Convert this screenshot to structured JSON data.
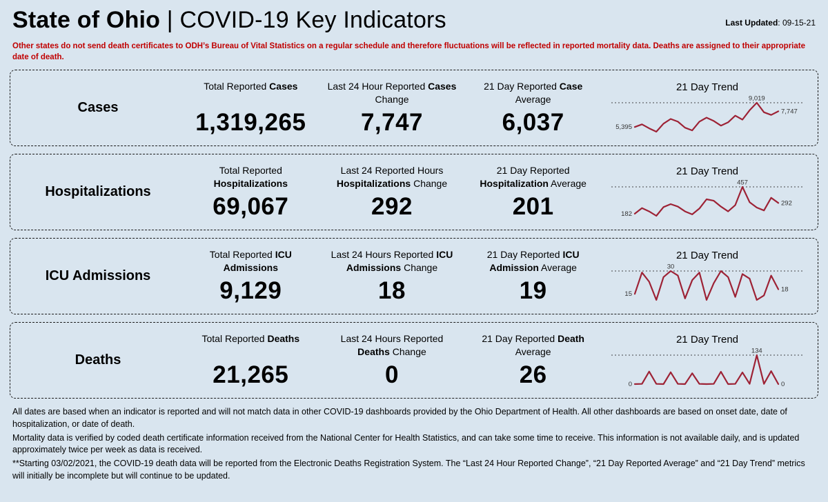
{
  "header": {
    "title_primary": "State of Ohio",
    "title_secondary": " | COVID-19  Key Indicators",
    "last_updated_label": "Last Updated",
    "last_updated_value": ": 09-15-21"
  },
  "disclaimer": "Other states do not send death certificates to ODH’s Bureau of Vital Statistics on a regular schedule and therefore fluctuations will be reflected in reported mortality data. Deaths are assigned to their appropriate date of death.",
  "rows": [
    {
      "label": "Cases",
      "trend_title": "21 Day Trend",
      "stats": [
        {
          "heading": [
            {
              "t": "Total Reported ",
              "b": false
            },
            {
              "t": "Cases",
              "b": true
            }
          ],
          "value": "1,319,265"
        },
        {
          "heading": [
            {
              "t": "Last 24 Hour Reported ",
              "b": false
            },
            {
              "t": "Cases",
              "b": true
            },
            {
              "t": " Change",
              "b": false
            }
          ],
          "value": "7,747"
        },
        {
          "heading": [
            {
              "t": "21 Day Reported ",
              "b": false
            },
            {
              "t": "Case",
              "b": true
            },
            {
              "t": " Average",
              "b": false
            }
          ],
          "value": "6,037"
        }
      ]
    },
    {
      "label": "Hospitalizations",
      "trend_title": "21 Day Trend",
      "stats": [
        {
          "heading": [
            {
              "t": "Total Reported ",
              "b": false
            },
            {
              "t": "Hospitalizations",
              "b": true
            }
          ],
          "value": "69,067"
        },
        {
          "heading": [
            {
              "t": "Last 24 Reported Hours ",
              "b": false
            },
            {
              "t": "Hospitalizations",
              "b": true
            },
            {
              "t": " Change",
              "b": false
            }
          ],
          "value": "292"
        },
        {
          "heading": [
            {
              "t": "21 Day Reported ",
              "b": false
            },
            {
              "t": "Hospitalization",
              "b": true
            },
            {
              "t": " Average",
              "b": false
            }
          ],
          "value": "201"
        }
      ]
    },
    {
      "label": "ICU Admissions",
      "trend_title": "21 Day Trend",
      "stats": [
        {
          "heading": [
            {
              "t": "Total Reported ",
              "b": false
            },
            {
              "t": "ICU Admissions",
              "b": true
            }
          ],
          "value": "9,129"
        },
        {
          "heading": [
            {
              "t": "Last 24 Hours Reported ",
              "b": false
            },
            {
              "t": "ICU Admissions",
              "b": true
            },
            {
              "t": " Change",
              "b": false
            }
          ],
          "value": "18"
        },
        {
          "heading": [
            {
              "t": "21 Day Reported ",
              "b": false
            },
            {
              "t": "ICU Admission",
              "b": true
            },
            {
              "t": " Average",
              "b": false
            }
          ],
          "value": "19"
        }
      ]
    },
    {
      "label": "Deaths",
      "trend_title": "21 Day Trend",
      "stats": [
        {
          "heading": [
            {
              "t": "Total Reported ",
              "b": false
            },
            {
              "t": "Deaths",
              "b": true
            }
          ],
          "value": "21,265"
        },
        {
          "heading": [
            {
              "t": "Last 24 Hours Reported ",
              "b": false
            },
            {
              "t": "Deaths",
              "b": true
            },
            {
              "t": " Change",
              "b": false
            }
          ],
          "value": "0"
        },
        {
          "heading": [
            {
              "t": "21 Day Reported ",
              "b": false
            },
            {
              "t": "Death",
              "b": true
            },
            {
              "t": " Average",
              "b": false
            }
          ],
          "value": "26"
        }
      ]
    }
  ],
  "chart_data": [
    {
      "type": "line",
      "title": "Cases 21 Day Trend",
      "values": [
        5395,
        5800,
        5200,
        4700,
        5900,
        6600,
        6200,
        5300,
        4900,
        6200,
        6800,
        6300,
        5600,
        6100,
        7100,
        6500,
        7900,
        9019,
        7600,
        7200,
        7747
      ],
      "start_label": "5,395",
      "peak_label": "9,019",
      "end_label": "7,747",
      "line_color": "#9d2235",
      "grid": "dotted-max-line",
      "x": "last 21 days"
    },
    {
      "type": "line",
      "title": "Hospitalizations 21 Day Trend",
      "values": [
        182,
        240,
        205,
        160,
        250,
        280,
        255,
        205,
        175,
        235,
        330,
        315,
        255,
        205,
        270,
        457,
        300,
        245,
        215,
        345,
        292
      ],
      "start_label": "182",
      "peak_label": "457",
      "end_label": "292",
      "line_color": "#9d2235",
      "grid": "dotted-max-line",
      "x": "last 21 days"
    },
    {
      "type": "line",
      "title": "ICU Admissions 21 Day Trend",
      "values": [
        15,
        29,
        23,
        11,
        26,
        30,
        27,
        12,
        24,
        29,
        11,
        22,
        30,
        26,
        13,
        28,
        25,
        11,
        14,
        27,
        18
      ],
      "start_label": "15",
      "peak_label": "30",
      "end_label": "18",
      "line_color": "#9d2235",
      "grid": "dotted-max-line",
      "x": "last 21 days"
    },
    {
      "type": "line",
      "title": "Deaths 21 Day Trend",
      "values": [
        0,
        1,
        58,
        1,
        0,
        55,
        1,
        0,
        50,
        1,
        0,
        1,
        57,
        0,
        1,
        54,
        1,
        134,
        1,
        60,
        0
      ],
      "start_label": "0",
      "peak_label": "134",
      "end_label": "0",
      "line_color": "#9d2235",
      "grid": "dotted-max-line",
      "x": "last 21 days"
    }
  ],
  "footer": {
    "p1": "All dates are based when an indicator is reported and will not match data in other COVID-19 dashboards provided by the Ohio Department of Health. All other dashboards are based on onset date, date of hospitalization, or date of death.",
    "p2": "Mortality data is verified by coded death certificate information received from the National Center for Health Statistics, and can take some time to receive. This information is not available daily, and is updated approximately twice per week as data is received.",
    "p3": "**Starting 03/02/2021, the COVID-19 death data will be reported from the Electronic Deaths Registration System. The “Last 24 Hour Reported Change”, “21 Day Reported Average” and “21 Day Trend” metrics will initially be incomplete but will continue to be updated."
  }
}
